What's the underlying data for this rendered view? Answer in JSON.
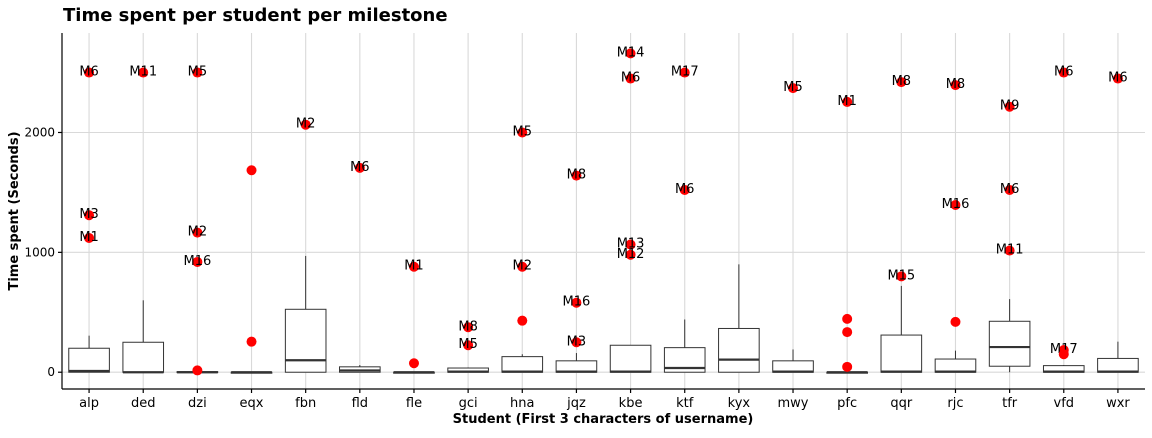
{
  "chart_data": {
    "type": "boxplot",
    "title": "Time spent per student per milestone",
    "xlabel": "Student (First 3 characters of username)",
    "ylabel": "Time spent (Seconds)",
    "ylim": [
      -140,
      2830
    ],
    "yticks": [
      0,
      1000,
      2000
    ],
    "grid": true,
    "categories": [
      "alp",
      "ded",
      "dzi",
      "eqx",
      "fbn",
      "fld",
      "fle",
      "gci",
      "hna",
      "jqz",
      "kbe",
      "ktf",
      "kyx",
      "mwy",
      "pfc",
      "qqr",
      "rjc",
      "tfr",
      "vfd",
      "wxr"
    ],
    "boxes": [
      {
        "q1": 0,
        "median": 10,
        "q3": 200,
        "whisker_low": 0,
        "whisker_high": 305
      },
      {
        "q1": 0,
        "median": 0,
        "q3": 250,
        "whisker_low": 0,
        "whisker_high": 600
      },
      {
        "q1": 0,
        "median": 0,
        "q3": 5,
        "whisker_low": 0,
        "whisker_high": 10
      },
      {
        "q1": 0,
        "median": 0,
        "q3": 0,
        "whisker_low": 0,
        "whisker_high": 0
      },
      {
        "q1": 0,
        "median": 100,
        "q3": 525,
        "whisker_low": 0,
        "whisker_high": 970
      },
      {
        "q1": 0,
        "median": 15,
        "q3": 45,
        "whisker_low": 0,
        "whisker_high": 60
      },
      {
        "q1": 0,
        "median": 0,
        "q3": 0,
        "whisker_low": 0,
        "whisker_high": 0
      },
      {
        "q1": 0,
        "median": 5,
        "q3": 35,
        "whisker_low": 0,
        "whisker_high": 40
      },
      {
        "q1": 0,
        "median": 5,
        "q3": 130,
        "whisker_low": 0,
        "whisker_high": 150
      },
      {
        "q1": 0,
        "median": 5,
        "q3": 95,
        "whisker_low": 0,
        "whisker_high": 160
      },
      {
        "q1": 0,
        "median": 5,
        "q3": 225,
        "whisker_low": 0,
        "whisker_high": 225
      },
      {
        "q1": 0,
        "median": 35,
        "q3": 205,
        "whisker_low": 0,
        "whisker_high": 440
      },
      {
        "q1": 0,
        "median": 105,
        "q3": 365,
        "whisker_low": 0,
        "whisker_high": 900
      },
      {
        "q1": 0,
        "median": 5,
        "q3": 95,
        "whisker_low": 0,
        "whisker_high": 190
      },
      {
        "q1": 0,
        "median": 0,
        "q3": 0,
        "whisker_low": 0,
        "whisker_high": 0
      },
      {
        "q1": 0,
        "median": 5,
        "q3": 310,
        "whisker_low": 0,
        "whisker_high": 720
      },
      {
        "q1": 0,
        "median": 5,
        "q3": 110,
        "whisker_low": 0,
        "whisker_high": 180
      },
      {
        "q1": 50,
        "median": 210,
        "q3": 425,
        "whisker_low": 0,
        "whisker_high": 610
      },
      {
        "q1": 0,
        "median": 5,
        "q3": 55,
        "whisker_low": 0,
        "whisker_high": 60
      },
      {
        "q1": 0,
        "median": 5,
        "q3": 115,
        "whisker_low": 0,
        "whisker_high": 255
      }
    ],
    "outliers": [
      {
        "category": "alp",
        "value": 2500,
        "label": "M6"
      },
      {
        "category": "alp",
        "value": 1310,
        "label": "M3"
      },
      {
        "category": "alp",
        "value": 1120,
        "label": "M1"
      },
      {
        "category": "ded",
        "value": 2500,
        "label": "M11"
      },
      {
        "category": "dzi",
        "value": 2500,
        "label": "M5"
      },
      {
        "category": "dzi",
        "value": 1165,
        "label": "M2"
      },
      {
        "category": "dzi",
        "value": 920,
        "label": "M16"
      },
      {
        "category": "dzi",
        "value": 15,
        "label": ""
      },
      {
        "category": "eqx",
        "value": 1685,
        "label": ""
      },
      {
        "category": "eqx",
        "value": 255,
        "label": ""
      },
      {
        "category": "fbn",
        "value": 2065,
        "label": "M2"
      },
      {
        "category": "fld",
        "value": 1705,
        "label": "M6"
      },
      {
        "category": "fle",
        "value": 880,
        "label": "M1"
      },
      {
        "category": "fle",
        "value": 75,
        "label": ""
      },
      {
        "category": "gci",
        "value": 375,
        "label": "M8"
      },
      {
        "category": "gci",
        "value": 225,
        "label": "M5"
      },
      {
        "category": "hna",
        "value": 2000,
        "label": "M5"
      },
      {
        "category": "hna",
        "value": 880,
        "label": "M2"
      },
      {
        "category": "hna",
        "value": 430,
        "label": ""
      },
      {
        "category": "jqz",
        "value": 1640,
        "label": "M8"
      },
      {
        "category": "jqz",
        "value": 580,
        "label": "M16"
      },
      {
        "category": "jqz",
        "value": 250,
        "label": "M3"
      },
      {
        "category": "kbe",
        "value": 2660,
        "label": "M14"
      },
      {
        "category": "kbe",
        "value": 2450,
        "label": "M6"
      },
      {
        "category": "kbe",
        "value": 1065,
        "label": "M13"
      },
      {
        "category": "kbe",
        "value": 980,
        "label": "M12"
      },
      {
        "category": "ktf",
        "value": 2500,
        "label": "M17"
      },
      {
        "category": "ktf",
        "value": 1520,
        "label": "M6"
      },
      {
        "category": "mwy",
        "value": 2370,
        "label": "M5"
      },
      {
        "category": "pfc",
        "value": 2255,
        "label": "M1"
      },
      {
        "category": "pfc",
        "value": 445,
        "label": ""
      },
      {
        "category": "pfc",
        "value": 335,
        "label": ""
      },
      {
        "category": "pfc",
        "value": 45,
        "label": ""
      },
      {
        "category": "qqr",
        "value": 2420,
        "label": "M8"
      },
      {
        "category": "qqr",
        "value": 800,
        "label": "M15"
      },
      {
        "category": "rjc",
        "value": 2395,
        "label": "M8"
      },
      {
        "category": "rjc",
        "value": 1395,
        "label": "M16"
      },
      {
        "category": "rjc",
        "value": 420,
        "label": ""
      },
      {
        "category": "tfr",
        "value": 2215,
        "label": "M9"
      },
      {
        "category": "tfr",
        "value": 1520,
        "label": "M6"
      },
      {
        "category": "tfr",
        "value": 1015,
        "label": "M11"
      },
      {
        "category": "vfd",
        "value": 2500,
        "label": "M6"
      },
      {
        "category": "vfd",
        "value": 185,
        "label": "M17"
      },
      {
        "category": "vfd",
        "value": 150,
        "label": ""
      },
      {
        "category": "wxr",
        "value": 2450,
        "label": "M6"
      }
    ],
    "colors": {
      "outlier": "#ff0000",
      "box_stroke": "#333333",
      "grid": "#d9d9d9"
    }
  }
}
